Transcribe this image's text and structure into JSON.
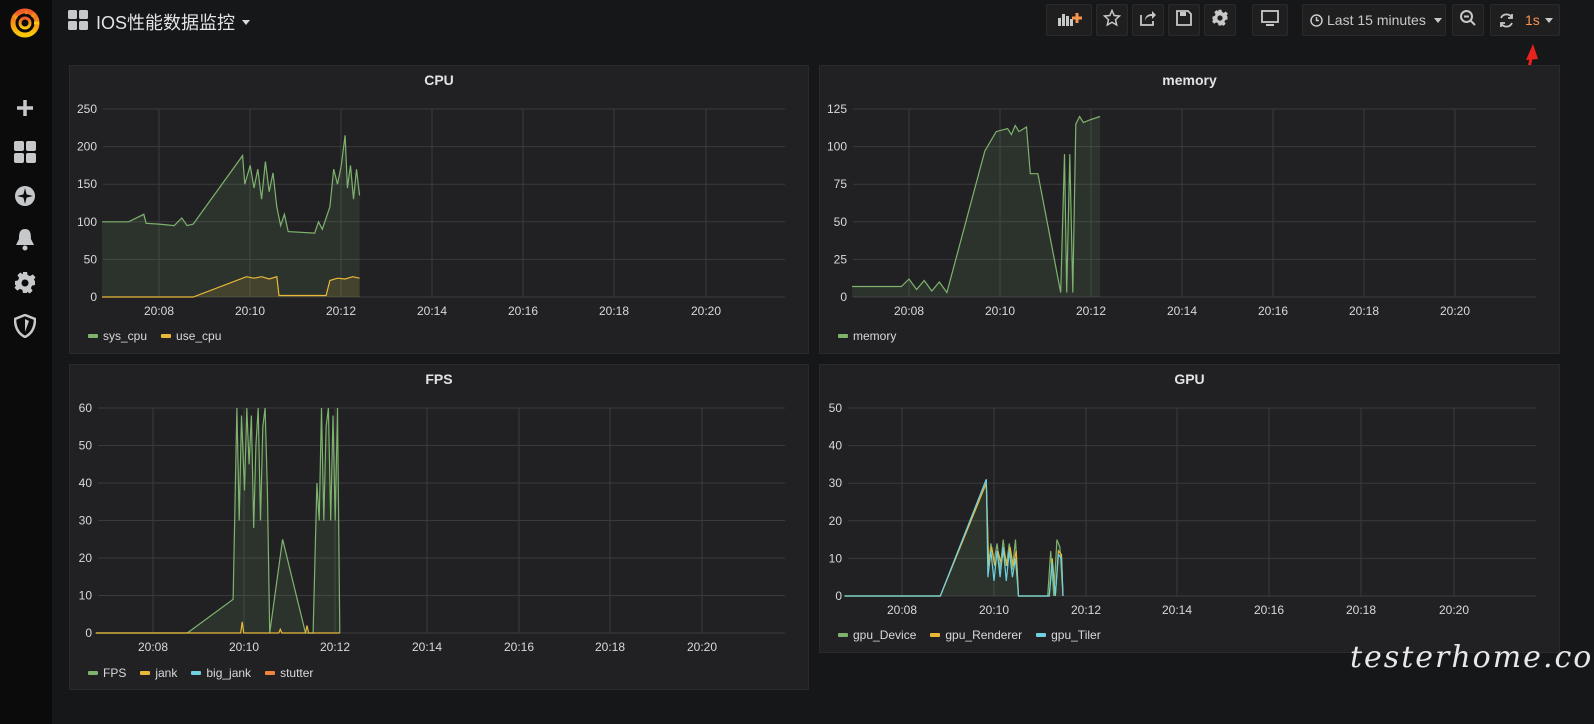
{
  "header": {
    "title": "IOS性能数据监控",
    "time_range": "Last 15 minutes",
    "refresh_interval": "1s"
  },
  "toolbar_icons": [
    "add-panel-icon",
    "star-icon",
    "share-icon",
    "save-icon",
    "settings-icon",
    "tv-mode-icon",
    "clock-icon",
    "zoom-out-icon",
    "refresh-icon"
  ],
  "sidebar_icons": [
    "grafana-logo-icon",
    "plus-icon",
    "dashboards-icon",
    "explore-compass-icon",
    "alerting-bell-icon",
    "configuration-gear-icon",
    "shield-icon"
  ],
  "colors": {
    "green": "#7eb26d",
    "yellow": "#eab839",
    "blue": "#6ed0e0",
    "orange": "#ef843c",
    "accent": "#f9934e"
  },
  "time_ticks": [
    "20:08",
    "20:10",
    "20:12",
    "20:14",
    "20:16",
    "20:18",
    "20:20"
  ],
  "watermark": "testerhome.com",
  "panels": [
    {
      "title": "CPU",
      "chart_data": {
        "type": "line",
        "x_unit": "time (HH:MM)",
        "ylim": [
          0,
          250
        ],
        "yticks": [
          "0",
          "50",
          "100",
          "150",
          "200",
          "250"
        ],
        "series": [
          {
            "name": "sys_cpu",
            "color": "#7eb26d",
            "fill": true,
            "points": [
              [
                "20:06:45",
                100
              ],
              [
                "20:07:20",
                100
              ],
              [
                "20:07:40",
                110
              ],
              [
                "20:07:43",
                98
              ],
              [
                "20:08:00",
                97
              ],
              [
                "20:08:20",
                95
              ],
              [
                "20:08:30",
                105
              ],
              [
                "20:08:37",
                95
              ],
              [
                "20:08:45",
                97
              ],
              [
                "20:09:50",
                188
              ],
              [
                "20:09:53",
                150
              ],
              [
                "20:10:00",
                175
              ],
              [
                "20:10:05",
                145
              ],
              [
                "20:10:10",
                170
              ],
              [
                "20:10:15",
                130
              ],
              [
                "20:10:20",
                180
              ],
              [
                "20:10:25",
                140
              ],
              [
                "20:10:30",
                165
              ],
              [
                "20:10:35",
                120
              ],
              [
                "20:10:40",
                95
              ],
              [
                "20:10:45",
                110
              ],
              [
                "20:10:50",
                87
              ],
              [
                "20:11:25",
                85
              ],
              [
                "20:11:30",
                100
              ],
              [
                "20:11:35",
                90
              ],
              [
                "20:11:40",
                105
              ],
              [
                "20:11:45",
                120
              ],
              [
                "20:11:50",
                170
              ],
              [
                "20:11:55",
                150
              ],
              [
                "20:12:00",
                175
              ],
              [
                "20:12:05",
                215
              ],
              [
                "20:12:08",
                145
              ],
              [
                "20:12:12",
                175
              ],
              [
                "20:12:16",
                130
              ],
              [
                "20:12:20",
                170
              ],
              [
                "20:12:24",
                135
              ]
            ]
          },
          {
            "name": "use_cpu",
            "color": "#eab839",
            "fill": true,
            "points": [
              [
                "20:06:45",
                0
              ],
              [
                "20:08:45",
                0
              ],
              [
                "20:09:55",
                27
              ],
              [
                "20:10:05",
                25
              ],
              [
                "20:10:15",
                27
              ],
              [
                "20:10:25",
                24
              ],
              [
                "20:10:35",
                27
              ],
              [
                "20:10:38",
                2
              ],
              [
                "20:11:40",
                2
              ],
              [
                "20:11:45",
                22
              ],
              [
                "20:11:55",
                25
              ],
              [
                "20:12:05",
                24
              ],
              [
                "20:12:15",
                27
              ],
              [
                "20:12:24",
                25
              ]
            ]
          }
        ]
      }
    },
    {
      "title": "memory",
      "chart_data": {
        "type": "line",
        "x_unit": "time (HH:MM)",
        "ylim": [
          0,
          125
        ],
        "yticks": [
          "0",
          "25",
          "50",
          "75",
          "100",
          "125"
        ],
        "series": [
          {
            "name": "memory",
            "color": "#7eb26d",
            "fill": true,
            "points": [
              [
                "20:06:45",
                7
              ],
              [
                "20:07:50",
                7
              ],
              [
                "20:08:00",
                12
              ],
              [
                "20:08:10",
                5
              ],
              [
                "20:08:20",
                11
              ],
              [
                "20:08:30",
                4
              ],
              [
                "20:08:40",
                10
              ],
              [
                "20:08:50",
                3
              ],
              [
                "20:09:40",
                97
              ],
              [
                "20:09:55",
                110
              ],
              [
                "20:10:10",
                112
              ],
              [
                "20:10:15",
                108
              ],
              [
                "20:10:20",
                114
              ],
              [
                "20:10:25",
                110
              ],
              [
                "20:10:35",
                113
              ],
              [
                "20:10:40",
                82
              ],
              [
                "20:10:50",
                82
              ],
              [
                "20:11:20",
                3
              ],
              [
                "20:11:25",
                95
              ],
              [
                "20:11:28",
                3
              ],
              [
                "20:11:32",
                95
              ],
              [
                "20:11:36",
                3
              ],
              [
                "20:11:40",
                115
              ],
              [
                "20:11:45",
                120
              ],
              [
                "20:11:50",
                116
              ],
              [
                "20:12:00",
                118
              ],
              [
                "20:12:12",
                120
              ]
            ]
          }
        ]
      }
    },
    {
      "title": "FPS",
      "chart_data": {
        "type": "line",
        "x_unit": "time (HH:MM)",
        "ylim": [
          0,
          60
        ],
        "yticks": [
          "0",
          "10",
          "20",
          "30",
          "40",
          "50",
          "60"
        ],
        "series": [
          {
            "name": "FPS",
            "color": "#7eb26d",
            "fill": true,
            "points": [
              [
                "20:06:45",
                0
              ],
              [
                "20:08:45",
                0
              ],
              [
                "20:09:45",
                9
              ],
              [
                "20:09:50",
                60
              ],
              [
                "20:09:53",
                30
              ],
              [
                "20:09:56",
                58
              ],
              [
                "20:10:00",
                38
              ],
              [
                "20:10:03",
                60
              ],
              [
                "20:10:06",
                45
              ],
              [
                "20:10:09",
                58
              ],
              [
                "20:10:12",
                28
              ],
              [
                "20:10:15",
                50
              ],
              [
                "20:10:18",
                60
              ],
              [
                "20:10:21",
                30
              ],
              [
                "20:10:24",
                55
              ],
              [
                "20:10:27",
                60
              ],
              [
                "20:10:30",
                38
              ],
              [
                "20:10:33",
                0
              ],
              [
                "20:10:50",
                25
              ],
              [
                "20:11:20",
                0
              ],
              [
                "20:11:30",
                0
              ],
              [
                "20:11:35",
                40
              ],
              [
                "20:11:38",
                30
              ],
              [
                "20:11:41",
                60
              ],
              [
                "20:11:44",
                30
              ],
              [
                "20:11:47",
                55
              ],
              [
                "20:11:50",
                60
              ],
              [
                "20:11:53",
                30
              ],
              [
                "20:11:56",
                58
              ],
              [
                "20:11:59",
                30
              ],
              [
                "20:12:02",
                60
              ],
              [
                "20:12:05",
                0
              ]
            ]
          },
          {
            "name": "jank",
            "color": "#eab839",
            "fill": false,
            "points": [
              [
                "20:06:45",
                0
              ],
              [
                "20:09:55",
                0
              ],
              [
                "20:09:57",
                3
              ],
              [
                "20:09:59",
                0
              ],
              [
                "20:10:45",
                0
              ],
              [
                "20:10:47",
                1
              ],
              [
                "20:10:49",
                0
              ],
              [
                "20:11:20",
                0
              ],
              [
                "20:11:22",
                2
              ],
              [
                "20:11:24",
                0
              ],
              [
                "20:12:05",
                0
              ]
            ]
          },
          {
            "name": "big_jank",
            "color": "#6ed0e0",
            "fill": false,
            "points": []
          },
          {
            "name": "stutter",
            "color": "#ef843c",
            "fill": false,
            "points": []
          }
        ]
      }
    },
    {
      "title": "GPU",
      "chart_data": {
        "type": "line",
        "x_unit": "time (HH:MM)",
        "ylim": [
          0,
          50
        ],
        "yticks": [
          "0",
          "10",
          "20",
          "30",
          "40",
          "50"
        ],
        "series": [
          {
            "name": "gpu_Device",
            "color": "#7eb26d",
            "fill": true,
            "points": [
              [
                "20:06:45",
                0
              ],
              [
                "20:08:50",
                0
              ],
              [
                "20:09:50",
                31
              ],
              [
                "20:09:53",
                8
              ],
              [
                "20:09:56",
                14
              ],
              [
                "20:10:00",
                9
              ],
              [
                "20:10:04",
                14
              ],
              [
                "20:10:08",
                7
              ],
              [
                "20:10:12",
                15
              ],
              [
                "20:10:16",
                8
              ],
              [
                "20:10:20",
                14
              ],
              [
                "20:10:24",
                7
              ],
              [
                "20:10:28",
                15
              ],
              [
                "20:10:32",
                0
              ],
              [
                "20:11:10",
                0
              ],
              [
                "20:11:14",
                12
              ],
              [
                "20:11:18",
                0
              ],
              [
                "20:11:22",
                15
              ],
              [
                "20:11:26",
                13
              ],
              [
                "20:11:30",
                0
              ]
            ]
          },
          {
            "name": "gpu_Renderer",
            "color": "#eab839",
            "fill": false,
            "points": [
              [
                "20:06:45",
                0
              ],
              [
                "20:08:50",
                0
              ],
              [
                "20:09:50",
                30
              ],
              [
                "20:09:53",
                8
              ],
              [
                "20:09:57",
                13
              ],
              [
                "20:10:01",
                8
              ],
              [
                "20:10:05",
                12
              ],
              [
                "20:10:09",
                9
              ],
              [
                "20:10:13",
                12
              ],
              [
                "20:10:17",
                8
              ],
              [
                "20:10:21",
                13
              ],
              [
                "20:10:25",
                8
              ],
              [
                "20:10:29",
                12
              ],
              [
                "20:10:32",
                0
              ],
              [
                "20:11:12",
                0
              ],
              [
                "20:11:16",
                10
              ],
              [
                "20:11:20",
                0
              ],
              [
                "20:11:24",
                12
              ],
              [
                "20:11:28",
                11
              ],
              [
                "20:11:30",
                0
              ]
            ]
          },
          {
            "name": "gpu_Tiler",
            "color": "#6ed0e0",
            "fill": false,
            "points": [
              [
                "20:06:45",
                0
              ],
              [
                "20:08:50",
                0
              ],
              [
                "20:09:50",
                31
              ],
              [
                "20:09:52",
                5
              ],
              [
                "20:09:56",
                12
              ],
              [
                "20:10:00",
                4
              ],
              [
                "20:10:04",
                12
              ],
              [
                "20:10:08",
                5
              ],
              [
                "20:10:12",
                13
              ],
              [
                "20:10:16",
                4
              ],
              [
                "20:10:20",
                12
              ],
              [
                "20:10:24",
                5
              ],
              [
                "20:10:28",
                10
              ],
              [
                "20:10:32",
                0
              ],
              [
                "20:11:12",
                0
              ],
              [
                "20:11:16",
                9
              ],
              [
                "20:11:20",
                0
              ],
              [
                "20:11:24",
                11
              ],
              [
                "20:11:28",
                10
              ],
              [
                "20:11:30",
                0
              ]
            ]
          }
        ]
      }
    }
  ]
}
